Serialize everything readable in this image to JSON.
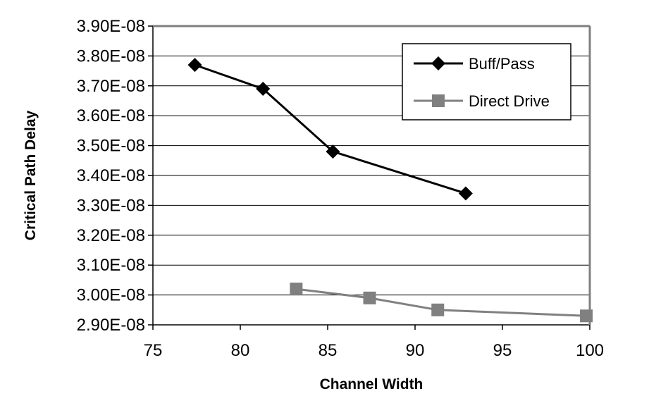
{
  "chart_data": {
    "type": "line",
    "xlabel": "Channel Width",
    "ylabel": "Critical Path Delay",
    "xlim": [
      75,
      100
    ],
    "ylim": [
      2.9e-08,
      3.9e-08
    ],
    "x_ticks": [
      "75",
      "80",
      "85",
      "90",
      "95",
      "100"
    ],
    "x_tick_values": [
      75,
      80,
      85,
      90,
      95,
      100
    ],
    "y_ticks": [
      "3.90E-08",
      "3.80E-08",
      "3.70E-08",
      "3.60E-08",
      "3.50E-08",
      "3.40E-08",
      "3.30E-08",
      "3.20E-08",
      "3.10E-08",
      "3.00E-08",
      "2.90E-08"
    ],
    "y_tick_values": [
      3.9e-08,
      3.8e-08,
      3.7e-08,
      3.6e-08,
      3.5e-08,
      3.4e-08,
      3.3e-08,
      3.2e-08,
      3.1e-08,
      3e-08,
      2.9e-08
    ],
    "grid": "horizontal",
    "legend_position": "top-right",
    "series": [
      {
        "name": "Buff/Pass",
        "marker": "diamond",
        "color": "#000000",
        "x": [
          77.4,
          81.3,
          85.3,
          92.9
        ],
        "y": [
          3.77e-08,
          3.69e-08,
          3.48e-08,
          3.34e-08
        ]
      },
      {
        "name": "Direct Drive",
        "marker": "square",
        "color": "#808080",
        "x": [
          83.2,
          87.4,
          91.3,
          99.8
        ],
        "y": [
          3.02e-08,
          2.99e-08,
          2.95e-08,
          2.93e-08
        ]
      }
    ]
  }
}
